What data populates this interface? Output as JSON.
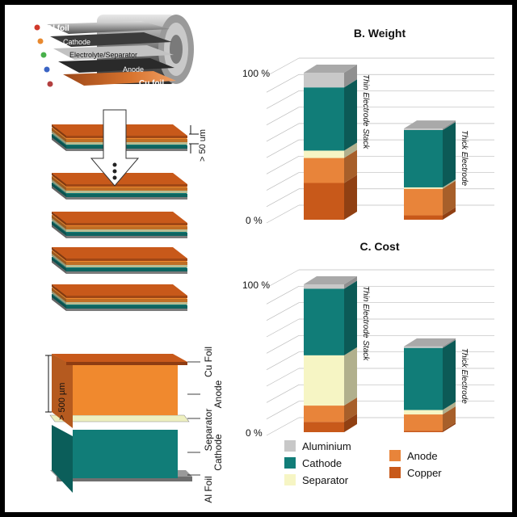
{
  "figure": {
    "roll_labels": [
      "Al foil",
      "Cathode",
      "Electrolyte/Separator",
      "Anode",
      "Cu foil"
    ],
    "stack_thickness_label": "> 50 um",
    "block_thickness_label": "> 500 µm",
    "block_labels": [
      "Cu Foil",
      "Anode",
      "Separator",
      "Cathode",
      "Al Foil"
    ]
  },
  "colors": {
    "aluminium": "#c8c8c8",
    "cathode": "#117d78",
    "separator": "#f6f5c4",
    "anode": "#e8843a",
    "copper": "#c8591a"
  },
  "legend": [
    "Aluminium",
    "Cathode",
    "Separator",
    "Anode",
    "Copper"
  ],
  "chart_data": [
    {
      "type": "bar",
      "title": "B. Weight",
      "ytick_labels": [
        "100 %",
        "0 %"
      ],
      "ylim": [
        0,
        100
      ],
      "categories": [
        "Thin Electrode Stack",
        "Thick Electrode"
      ],
      "stacked": true,
      "series": [
        {
          "name": "Copper",
          "values": [
            25,
            3
          ]
        },
        {
          "name": "Anode",
          "values": [
            17,
            18
          ]
        },
        {
          "name": "Separator",
          "values": [
            5,
            1
          ]
        },
        {
          "name": "Cathode",
          "values": [
            43,
            39
          ]
        },
        {
          "name": "Aluminium",
          "values": [
            10,
            1
          ]
        }
      ]
    },
    {
      "type": "bar",
      "title": "C. Cost",
      "ytick_labels": [
        "100 %",
        "0 %"
      ],
      "ylim": [
        0,
        100
      ],
      "categories": [
        "Thin Electrode Stack",
        "Thick Electrode"
      ],
      "stacked": true,
      "series": [
        {
          "name": "Copper",
          "values": [
            7,
            1
          ]
        },
        {
          "name": "Anode",
          "values": [
            11,
            11
          ]
        },
        {
          "name": "Separator",
          "values": [
            34,
            3
          ]
        },
        {
          "name": "Cathode",
          "values": [
            45,
            42
          ]
        },
        {
          "name": "Aluminium",
          "values": [
            3,
            1
          ]
        }
      ]
    }
  ]
}
